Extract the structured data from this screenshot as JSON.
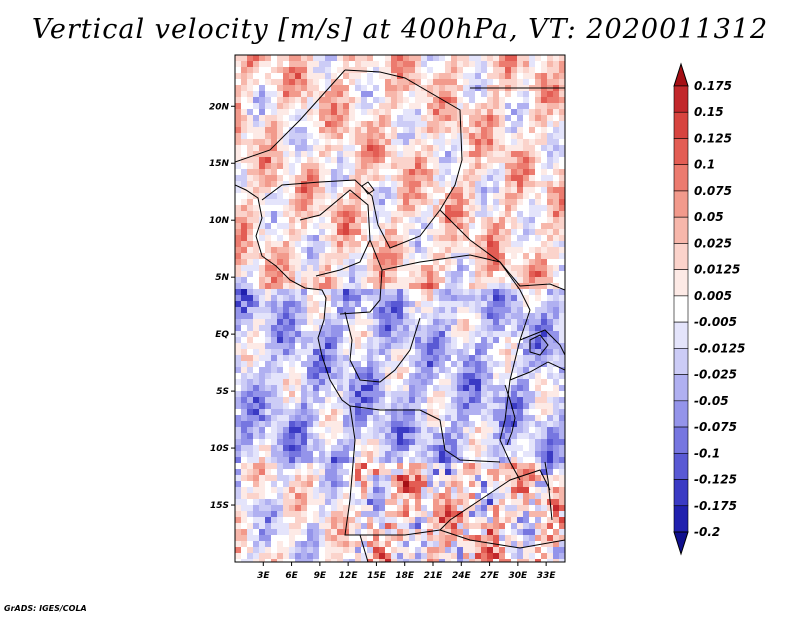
{
  "title": "Vertical velocity [m/s] at 400hPa, VT: 2020011312",
  "credit": "GrADS: IGES/COLA",
  "map": {
    "lat_labels": [
      "20N",
      "15N",
      "10N",
      "5N",
      "EQ",
      "5S",
      "10S",
      "15S"
    ],
    "lat_values": [
      20,
      15,
      10,
      5,
      0,
      -5,
      -10,
      -15
    ],
    "lon_labels": [
      "3E",
      "6E",
      "9E",
      "12E",
      "15E",
      "18E",
      "21E",
      "24E",
      "27E",
      "30E",
      "33E"
    ],
    "lon_values": [
      3,
      6,
      9,
      12,
      15,
      18,
      21,
      24,
      27,
      30,
      33
    ],
    "lon_range": [
      0,
      35
    ],
    "lat_range": [
      -20,
      24.5
    ]
  },
  "colorbar": {
    "labels": [
      "0.175",
      "0.15",
      "0.125",
      "0.1",
      "0.075",
      "0.05",
      "0.025",
      "0.0125",
      "0.005",
      "-0.005",
      "-0.0125",
      "-0.025",
      "-0.05",
      "-0.075",
      "-0.1",
      "-0.125",
      "-0.175",
      "-0.2"
    ],
    "colors": [
      "#a50f15",
      "#c2272b",
      "#d7443f",
      "#e35d54",
      "#ec7b6f",
      "#f29a8c",
      "#f7b7ab",
      "#fbd3cb",
      "#fdeae6",
      "#ffffff",
      "#e4e4fb",
      "#ccccf6",
      "#b0b0f1",
      "#9494ea",
      "#7676e0",
      "#5959d4",
      "#3a3ac4",
      "#2020ae",
      "#10108e"
    ]
  }
}
